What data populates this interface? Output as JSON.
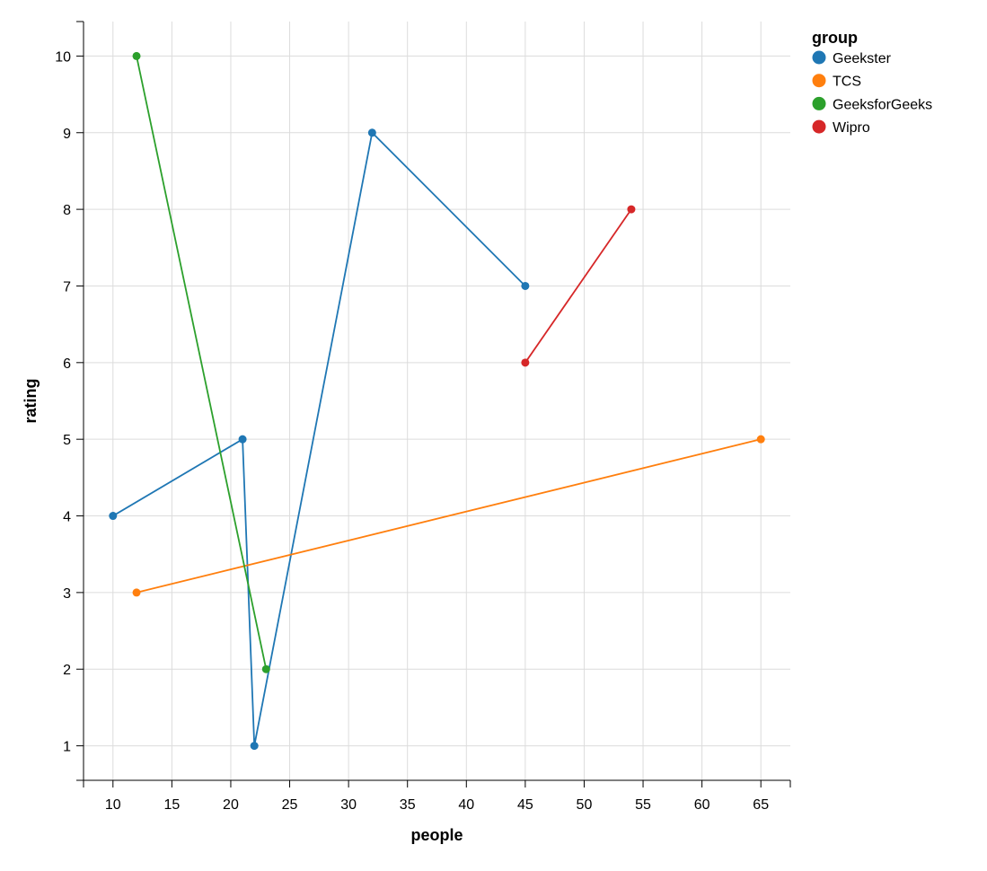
{
  "chart_data": {
    "type": "line",
    "xlabel": "people",
    "ylabel": "rating",
    "xlim": [
      7.5,
      67.5
    ],
    "ylim": [
      0.55,
      10.45
    ],
    "x_ticks": [
      10,
      15,
      20,
      25,
      30,
      35,
      40,
      45,
      50,
      55,
      60,
      65
    ],
    "y_ticks": [
      1,
      2,
      3,
      4,
      5,
      6,
      7,
      8,
      9,
      10
    ],
    "grid": true,
    "legend_title": "group",
    "legend_position": "top-right",
    "series": [
      {
        "name": "Geekster",
        "color": "#1f77b4",
        "points": [
          [
            10,
            4
          ],
          [
            21,
            5
          ],
          [
            22,
            1
          ],
          [
            32,
            9
          ],
          [
            45,
            7
          ]
        ]
      },
      {
        "name": "TCS",
        "color": "#ff7f0e",
        "points": [
          [
            12,
            3
          ],
          [
            65,
            5
          ]
        ]
      },
      {
        "name": "GeeksforGeeks",
        "color": "#2ca02c",
        "points": [
          [
            12,
            10
          ],
          [
            23,
            2
          ]
        ]
      },
      {
        "name": "Wipro",
        "color": "#d62728",
        "points": [
          [
            45,
            6
          ],
          [
            54,
            8
          ]
        ]
      }
    ]
  }
}
